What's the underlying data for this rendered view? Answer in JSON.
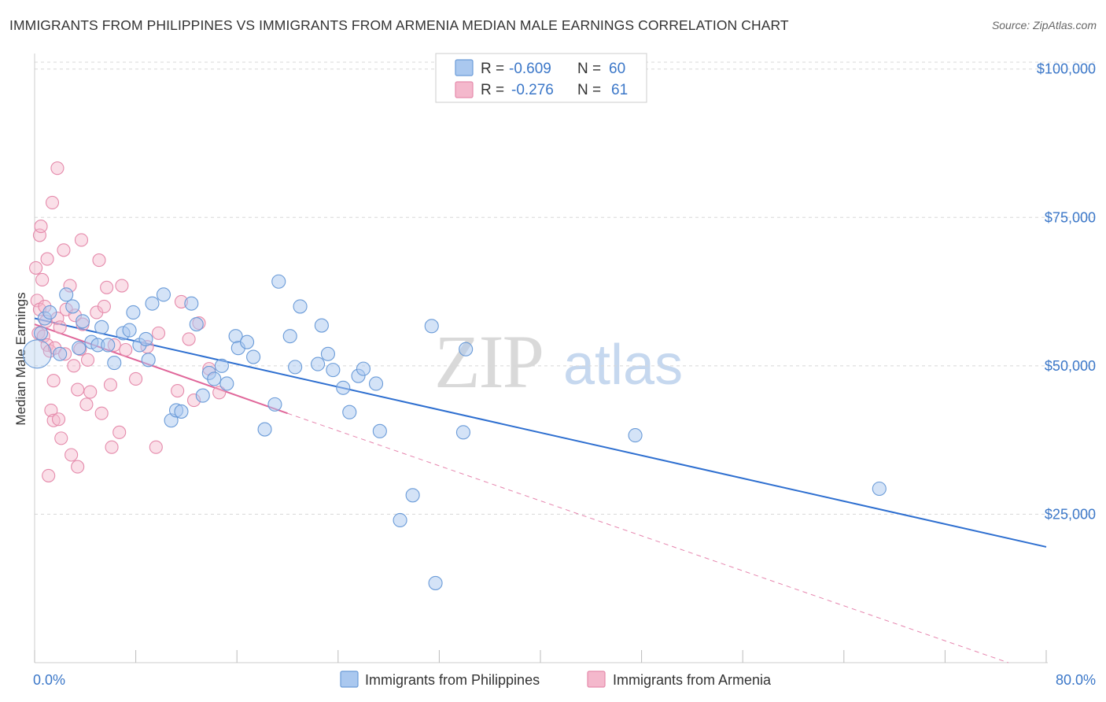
{
  "title": "IMMIGRANTS FROM PHILIPPINES VS IMMIGRANTS FROM ARMENIA MEDIAN MALE EARNINGS CORRELATION CHART",
  "source": "Source: ZipAtlas.com",
  "watermark": {
    "zip": "ZIP",
    "atlas": "atlas"
  },
  "legend": {
    "series": [
      {
        "r_label": "R =",
        "r_value": "-0.609",
        "n_label": "N =",
        "n_value": "60"
      },
      {
        "r_label": "R =",
        "r_value": "-0.276",
        "n_label": "N =",
        "n_value": "61"
      }
    ]
  },
  "colors": {
    "philippines_fill": "#aac8ef",
    "philippines_stroke": "#6a9bd8",
    "philippines_line": "#2e6fd0",
    "armenia_fill": "#f4b8cc",
    "armenia_stroke": "#e58aab",
    "armenia_line": "#e0679a",
    "grid": "#d8d8d8",
    "tick_label": "#3b77c8"
  },
  "chart_data": {
    "type": "scatter",
    "title": "IMMIGRANTS FROM PHILIPPINES VS IMMIGRANTS FROM ARMENIA MEDIAN MALE EARNINGS CORRELATION CHART",
    "xlabel": "",
    "ylabel": "Median Male Earnings",
    "xlim": [
      0,
      80
    ],
    "ylim": [
      0,
      105000
    ],
    "x_tick_labels": [
      "0.0%",
      "80.0%"
    ],
    "y_ticks": [
      25000,
      50000,
      75000,
      100000
    ],
    "y_tick_labels": [
      "$25,000",
      "$50,000",
      "$75,000",
      "$100,000"
    ],
    "grid": "horizontal dashed",
    "legend_placement": "top-center",
    "series": [
      {
        "name": "Immigrants from Philippines",
        "r": -0.609,
        "n": 60,
        "trend": {
          "x": [
            0,
            80
          ],
          "y": [
            58000,
            19500
          ]
        },
        "points": [
          [
            0.2,
            52000
          ],
          [
            0.5,
            55500
          ],
          [
            0.8,
            58000
          ],
          [
            1.2,
            59000
          ],
          [
            2.0,
            52000
          ],
          [
            2.5,
            62000
          ],
          [
            3.0,
            60000
          ],
          [
            3.8,
            57500
          ],
          [
            4.5,
            54000
          ],
          [
            5.0,
            53500
          ],
          [
            5.3,
            56500
          ],
          [
            5.8,
            53500
          ],
          [
            6.3,
            50500
          ],
          [
            7.0,
            55500
          ],
          [
            7.5,
            56000
          ],
          [
            7.8,
            59000
          ],
          [
            8.3,
            53500
          ],
          [
            8.8,
            54500
          ],
          [
            9.0,
            51000
          ],
          [
            9.3,
            60500
          ],
          [
            10.2,
            62000
          ],
          [
            10.8,
            40800
          ],
          [
            11.2,
            42500
          ],
          [
            11.6,
            42300
          ],
          [
            12.4,
            60500
          ],
          [
            12.8,
            57000
          ],
          [
            13.3,
            45000
          ],
          [
            13.8,
            48800
          ],
          [
            14.2,
            47800
          ],
          [
            14.8,
            50000
          ],
          [
            15.2,
            47000
          ],
          [
            15.9,
            55000
          ],
          [
            16.1,
            53000
          ],
          [
            16.8,
            54000
          ],
          [
            17.3,
            51500
          ],
          [
            18.2,
            39300
          ],
          [
            19.0,
            43500
          ],
          [
            19.3,
            64200
          ],
          [
            20.2,
            55000
          ],
          [
            20.6,
            49800
          ],
          [
            21.0,
            60000
          ],
          [
            22.4,
            50300
          ],
          [
            22.7,
            56800
          ],
          [
            23.2,
            52000
          ],
          [
            23.6,
            49300
          ],
          [
            24.4,
            46300
          ],
          [
            24.9,
            42200
          ],
          [
            25.6,
            48300
          ],
          [
            26.0,
            49500
          ],
          [
            27.0,
            47000
          ],
          [
            27.3,
            39000
          ],
          [
            28.9,
            24000
          ],
          [
            29.9,
            28200
          ],
          [
            31.4,
            56700
          ],
          [
            31.7,
            13400
          ],
          [
            33.9,
            38800
          ],
          [
            34.1,
            52800
          ],
          [
            47.5,
            38300
          ],
          [
            66.8,
            29300
          ],
          [
            3.5,
            53000
          ]
        ]
      },
      {
        "name": "Immigrants from Armenia",
        "r": -0.276,
        "n": 61,
        "trend": {
          "x": [
            0,
            20
          ],
          "y": [
            57000,
            42000
          ]
        },
        "trend_extension": {
          "x": [
            20,
            77
          ],
          "y": [
            42000,
            0
          ]
        },
        "points": [
          [
            0.1,
            66500
          ],
          [
            0.2,
            61000
          ],
          [
            0.3,
            55500
          ],
          [
            0.4,
            59500
          ],
          [
            0.4,
            72000
          ],
          [
            0.5,
            73500
          ],
          [
            0.6,
            64500
          ],
          [
            0.7,
            55000
          ],
          [
            0.8,
            60000
          ],
          [
            0.9,
            57500
          ],
          [
            1.0,
            53500
          ],
          [
            1.0,
            68000
          ],
          [
            1.1,
            31500
          ],
          [
            1.2,
            52500
          ],
          [
            1.3,
            42500
          ],
          [
            1.4,
            77500
          ],
          [
            1.5,
            47500
          ],
          [
            1.5,
            40800
          ],
          [
            1.6,
            53000
          ],
          [
            1.8,
            83300
          ],
          [
            1.8,
            58000
          ],
          [
            1.9,
            41000
          ],
          [
            2.0,
            56500
          ],
          [
            2.1,
            37800
          ],
          [
            2.3,
            69500
          ],
          [
            2.4,
            52000
          ],
          [
            2.5,
            59500
          ],
          [
            2.8,
            63500
          ],
          [
            2.9,
            35000
          ],
          [
            3.1,
            50000
          ],
          [
            3.2,
            58500
          ],
          [
            3.4,
            46000
          ],
          [
            3.4,
            33000
          ],
          [
            3.6,
            52800
          ],
          [
            3.7,
            71200
          ],
          [
            3.8,
            57000
          ],
          [
            4.1,
            43500
          ],
          [
            4.2,
            51000
          ],
          [
            4.4,
            45600
          ],
          [
            4.9,
            59000
          ],
          [
            5.1,
            67800
          ],
          [
            5.3,
            42000
          ],
          [
            5.5,
            60000
          ],
          [
            5.7,
            63200
          ],
          [
            6.0,
            46800
          ],
          [
            6.1,
            36300
          ],
          [
            6.3,
            53500
          ],
          [
            6.7,
            38800
          ],
          [
            6.9,
            63500
          ],
          [
            7.2,
            52700
          ],
          [
            8.0,
            47800
          ],
          [
            8.9,
            53200
          ],
          [
            9.6,
            36300
          ],
          [
            9.8,
            55500
          ],
          [
            11.3,
            45800
          ],
          [
            11.6,
            60800
          ],
          [
            12.2,
            54500
          ],
          [
            12.6,
            44200
          ],
          [
            13.0,
            57200
          ],
          [
            13.8,
            49500
          ],
          [
            14.6,
            45500
          ]
        ]
      }
    ]
  },
  "bottom_legend": [
    {
      "label": "Immigrants from Philippines"
    },
    {
      "label": "Immigrants from Armenia"
    }
  ]
}
